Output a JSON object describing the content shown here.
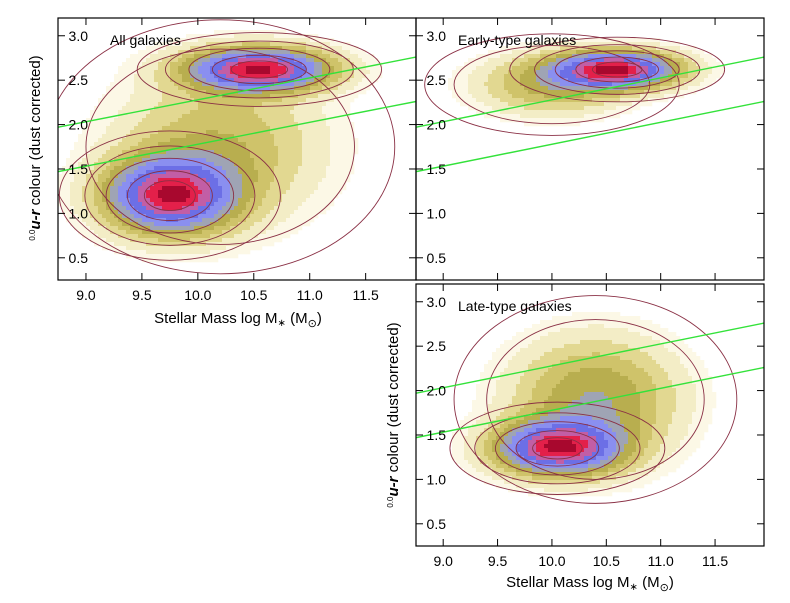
{
  "chart_data": [
    {
      "type": "scatter",
      "panel_id": "all",
      "title": "All galaxies",
      "xlabel": "Stellar Mass log M∗ (M⊙)",
      "ylabel": "⁰·⁰u-r colour (dust corrected)",
      "ylabel_prefix": "0.0",
      "ylabel_var": "u-r",
      "ylabel_rest": " colour (dust corrected)",
      "xlabel_main": "Stellar Mass log M",
      "xlabel_sub": "∗",
      "xlabel_unit_open": " (M",
      "xlabel_unit_sub": "⊙",
      "xlabel_unit_close": ")",
      "xlim": [
        8.75,
        11.95
      ],
      "ylim": [
        0.25,
        3.2
      ],
      "xticks": [
        "9.0",
        "9.5",
        "10.0",
        "10.5",
        "11.0",
        "11.5"
      ],
      "yticks": [
        "0.5",
        "1.0",
        "1.5",
        "2.0",
        "2.5",
        "3.0"
      ],
      "show_xaxis_labels": true,
      "show_yaxis_labels": true,
      "density_peaks": [
        {
          "x": 10.55,
          "y": 2.62,
          "sx": 0.42,
          "sy": 0.16,
          "w": 1.0
        },
        {
          "x": 9.75,
          "y": 1.2,
          "sx": 0.38,
          "sy": 0.28,
          "w": 0.95
        },
        {
          "x": 10.2,
          "y": 1.75,
          "sx": 0.6,
          "sy": 0.55,
          "w": 0.3
        }
      ],
      "lines": [
        {
          "x": [
            8.75,
            11.95
          ],
          "y": [
            1.97,
            2.76
          ]
        },
        {
          "x": [
            8.75,
            11.95
          ],
          "y": [
            1.47,
            2.26
          ]
        }
      ]
    },
    {
      "type": "scatter",
      "panel_id": "early",
      "title": "Early-type galaxies",
      "xlim": [
        8.75,
        11.95
      ],
      "ylim": [
        0.25,
        3.2
      ],
      "xticks": [
        "9.0",
        "9.5",
        "10.0",
        "10.5",
        "11.0",
        "11.5"
      ],
      "yticks": [
        "0.5",
        "1.0",
        "1.5",
        "2.0",
        "2.5",
        "3.0"
      ],
      "show_xaxis_labels": false,
      "show_yaxis_labels": true,
      "density_peaks": [
        {
          "x": 10.6,
          "y": 2.62,
          "sx": 0.38,
          "sy": 0.14,
          "w": 1.0
        },
        {
          "x": 10.0,
          "y": 2.45,
          "sx": 0.45,
          "sy": 0.22,
          "w": 0.35
        }
      ],
      "lines": [
        {
          "x": [
            8.75,
            11.95
          ],
          "y": [
            1.97,
            2.76
          ]
        },
        {
          "x": [
            8.75,
            11.95
          ],
          "y": [
            1.47,
            2.26
          ]
        }
      ]
    },
    {
      "type": "scatter",
      "panel_id": "late",
      "title": "Late-type galaxies",
      "xlim": [
        8.75,
        11.95
      ],
      "ylim": [
        0.25,
        3.2
      ],
      "xticks": [
        "9.0",
        "9.5",
        "10.0",
        "10.5",
        "11.0",
        "11.5"
      ],
      "yticks": [
        "0.5",
        "1.0",
        "1.5",
        "2.0",
        "2.5",
        "3.0"
      ],
      "show_xaxis_labels": true,
      "show_yaxis_labels": true,
      "density_peaks": [
        {
          "x": 10.05,
          "y": 1.35,
          "sx": 0.38,
          "sy": 0.2,
          "w": 1.0
        },
        {
          "x": 10.4,
          "y": 1.9,
          "sx": 0.5,
          "sy": 0.45,
          "w": 0.45
        }
      ],
      "lines": [
        {
          "x": [
            8.75,
            11.95
          ],
          "y": [
            1.97,
            2.76
          ]
        },
        {
          "x": [
            8.75,
            11.95
          ],
          "y": [
            1.47,
            2.26
          ]
        }
      ]
    }
  ],
  "colors": {
    "line": "#33e23a",
    "contour": "#8a3045",
    "density_low": "#fbf6e0",
    "density_mid": "#a9a23a",
    "density_blue": "#8e8ef0",
    "density_red": "#e0204a"
  }
}
